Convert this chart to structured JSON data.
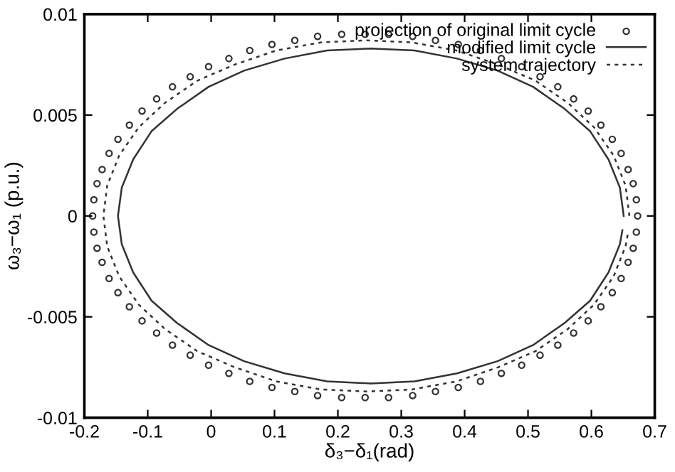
{
  "chart_data": {
    "type": "line",
    "xlabel": "δ₃−δ₁(rad)",
    "ylabel": "ω₃−ω₁ (p.u.)",
    "xlim": [
      -0.2,
      0.7
    ],
    "xticks": [
      -0.2,
      -0.1,
      0,
      0.1,
      0.2,
      0.3,
      0.4,
      0.5,
      0.6,
      0.7
    ],
    "ylim": [
      -0.01,
      0.01
    ],
    "yticks": [
      -0.01,
      -0.005,
      0,
      0.005,
      0.01
    ],
    "grid": false,
    "legend": "top right",
    "series": [
      {
        "name": "projection of original limit cycle",
        "type": "scatter",
        "marker": "circle",
        "color": "#333333",
        "x": [
          0.673,
          0.671,
          0.666,
          0.658,
          0.647,
          0.633,
          0.615,
          0.595,
          0.572,
          0.547,
          0.519,
          0.49,
          0.458,
          0.425,
          0.39,
          0.354,
          0.318,
          0.28,
          0.243,
          0.206,
          0.168,
          0.132,
          0.096,
          0.061,
          0.028,
          -0.004,
          -0.033,
          -0.061,
          -0.086,
          -0.109,
          -0.129,
          -0.147,
          -0.161,
          -0.172,
          -0.18,
          -0.185,
          -0.187,
          -0.185,
          -0.18,
          -0.172,
          -0.161,
          -0.147,
          -0.129,
          -0.109,
          -0.086,
          -0.061,
          -0.033,
          -0.004,
          0.028,
          0.061,
          0.096,
          0.132,
          0.168,
          0.206,
          0.243,
          0.28,
          0.318,
          0.354,
          0.39,
          0.425,
          0.458,
          0.49,
          0.519,
          0.547,
          0.572,
          0.595,
          0.615,
          0.633,
          0.647,
          0.658,
          0.666,
          0.671
        ],
        "values": [
          0,
          0.0008,
          0.0016,
          0.0023,
          0.0031,
          0.0038,
          0.0045,
          0.0052,
          0.0058,
          0.0064,
          0.0069,
          0.0074,
          0.0078,
          0.0082,
          0.0085,
          0.0087,
          0.0089,
          0.009,
          0.009,
          0.009,
          0.0089,
          0.0087,
          0.0085,
          0.0082,
          0.0078,
          0.0074,
          0.0069,
          0.0064,
          0.0058,
          0.0052,
          0.0045,
          0.0038,
          0.0031,
          0.0023,
          0.0016,
          0.0008,
          0,
          -0.0008,
          -0.0016,
          -0.0023,
          -0.0031,
          -0.0038,
          -0.0045,
          -0.0052,
          -0.0058,
          -0.0064,
          -0.0069,
          -0.0074,
          -0.0078,
          -0.0082,
          -0.0085,
          -0.0087,
          -0.0089,
          -0.009,
          -0.009,
          -0.009,
          -0.0089,
          -0.0087,
          -0.0085,
          -0.0082,
          -0.0078,
          -0.0074,
          -0.0069,
          -0.0064,
          -0.0058,
          -0.0052,
          -0.0045,
          -0.0038,
          -0.0031,
          -0.0023,
          -0.0016,
          -0.0008
        ]
      },
      {
        "name": "modified limit cycle",
        "line_style": "solid",
        "color": "#333333",
        "x": [
          0.651,
          0.645,
          0.627,
          0.598,
          0.558,
          0.508,
          0.452,
          0.388,
          0.321,
          0.252,
          0.183,
          0.116,
          0.052,
          -0.004,
          -0.054,
          -0.094,
          -0.123,
          -0.141,
          -0.147,
          -0.141,
          -0.123,
          -0.094,
          -0.054,
          -0.004,
          0.052,
          0.116,
          0.183,
          0.252,
          0.321,
          0.388,
          0.452,
          0.508,
          0.558,
          0.598,
          0.627,
          0.645,
          0.649
        ],
        "values": [
          0,
          0.0014,
          0.0028,
          0.0042,
          0.0053,
          0.0064,
          0.0072,
          0.0078,
          0.0082,
          0.0083,
          0.0082,
          0.0078,
          0.0072,
          0.0064,
          0.0053,
          0.0042,
          0.0028,
          0.0014,
          0,
          -0.0014,
          -0.0028,
          -0.0042,
          -0.0053,
          -0.0064,
          -0.0072,
          -0.0078,
          -0.0082,
          -0.0083,
          -0.0082,
          -0.0078,
          -0.0072,
          -0.0064,
          -0.0053,
          -0.0042,
          -0.0028,
          -0.0014,
          -0.0007
        ]
      },
      {
        "name": "system trajectory",
        "line_style": "dotted",
        "color": "#333333",
        "x": [
          0.66,
          0.654,
          0.635,
          0.604,
          0.563,
          0.512,
          0.453,
          0.387,
          0.317,
          0.245,
          0.173,
          0.103,
          0.037,
          -0.022,
          -0.073,
          -0.114,
          -0.145,
          -0.164,
          -0.17,
          -0.164,
          -0.145,
          -0.114,
          -0.073,
          -0.022,
          0.037,
          0.103,
          0.173,
          0.245,
          0.317,
          0.387,
          0.453,
          0.512,
          0.563,
          0.604,
          0.635,
          0.654,
          0.658
        ],
        "values": [
          0,
          0.0015,
          0.003,
          0.0044,
          0.0056,
          0.0067,
          0.0075,
          0.0082,
          0.0086,
          0.0087,
          0.0086,
          0.0082,
          0.0075,
          0.0067,
          0.0056,
          0.0044,
          0.003,
          0.0015,
          0,
          -0.0015,
          -0.003,
          -0.0044,
          -0.0056,
          -0.0067,
          -0.0075,
          -0.0082,
          -0.0086,
          -0.0087,
          -0.0086,
          -0.0082,
          -0.0075,
          -0.0067,
          -0.0056,
          -0.0044,
          -0.003,
          -0.0015,
          -0.0008
        ]
      }
    ]
  }
}
